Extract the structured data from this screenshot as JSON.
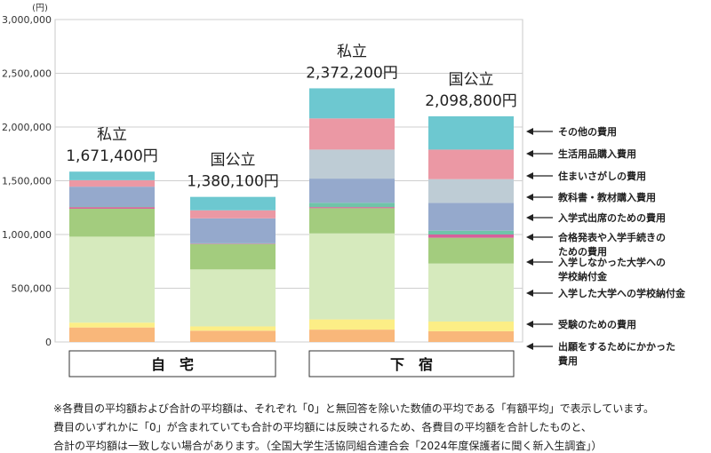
{
  "chart_data": {
    "type": "bar",
    "stacked": true,
    "unit_label": "(円)",
    "ylim": [
      0,
      3000000
    ],
    "y_ticks": [
      "0",
      "500,000",
      "1,000,000",
      "1,500,000",
      "2,000,000",
      "2,500,000",
      "3,000,000"
    ],
    "groups": [
      {
        "label": "自　宅",
        "bars": [
          0,
          1
        ]
      },
      {
        "label": "下　宿",
        "bars": [
          2,
          3
        ]
      }
    ],
    "bars": [
      {
        "type_label": "私立",
        "total_label": "1,671,400円",
        "values": [
          135000,
          45000,
          800000,
          260000,
          15000,
          5000,
          185000,
          0,
          60000,
          80000
        ]
      },
      {
        "type_label": "国公立",
        "total_label": "1,380,100円",
        "values": [
          105000,
          40000,
          530000,
          235000,
          5000,
          5000,
          230000,
          0,
          75000,
          125000
        ]
      },
      {
        "type_label": "私立",
        "total_label": "2,372,200円",
        "values": [
          115000,
          95000,
          800000,
          235000,
          10000,
          40000,
          225000,
          270000,
          290000,
          280000
        ]
      },
      {
        "type_label": "国公立",
        "total_label": "2,098,800円",
        "values": [
          100000,
          90000,
          540000,
          240000,
          30000,
          35000,
          260000,
          220000,
          275000,
          310000
        ]
      }
    ],
    "series": [
      {
        "name": "出願をするためにかかった費用",
        "color": "#F9B77A"
      },
      {
        "name": "受験のための費用",
        "color": "#FCEE86"
      },
      {
        "name": "入学した大学への学校納付金",
        "color": "#D6EABD"
      },
      {
        "name": "入学しなかった大学への学校納付金",
        "color": "#A3CC7E"
      },
      {
        "name": "合格発表や入学手続きのための費用",
        "color": "#D7609B"
      },
      {
        "name": "入学式出席のための費用",
        "color": "#6FC4A8"
      },
      {
        "name": "教科書・教材購入費用",
        "color": "#95A9CC"
      },
      {
        "name": "住まいさがしの費用",
        "color": "#BECCD5"
      },
      {
        "name": "生活用品購入費用",
        "color": "#EB98A4"
      },
      {
        "name": "その他の費用",
        "color": "#6DC8D0"
      }
    ],
    "annotations": [
      {
        "series": 9,
        "lines": [
          "その他の費用"
        ]
      },
      {
        "series": 8,
        "lines": [
          "生活用品購入費用"
        ]
      },
      {
        "series": 7,
        "lines": [
          "住まいさがしの費用"
        ]
      },
      {
        "series": 6,
        "lines": [
          "教科書・教材購入費用"
        ]
      },
      {
        "series": 5,
        "lines": [
          "入学式出席のための費用"
        ]
      },
      {
        "series": 4,
        "lines": [
          "合格発表や入学手続きの",
          "ための費用"
        ]
      },
      {
        "series": 3,
        "lines": [
          "入学しなかった大学への",
          "学校納付金"
        ]
      },
      {
        "series": 2,
        "lines": [
          "入学した大学への学校納付金"
        ]
      },
      {
        "series": 1,
        "lines": [
          "受験のための費用"
        ]
      },
      {
        "series": 0,
        "lines": [
          "出願をするためにかかった",
          "費用"
        ]
      }
    ],
    "grid": true
  },
  "notes": [
    "※各費目の平均額および合計の平均額は、それぞれ「0」と無回答を除いた数値の平均である「有額平均」で表示しています。",
    "費目のいずれかに「0」が含まれていても合計の平均額には反映されるため、各費目の平均額を合計したものと、",
    "合計の平均額は一致しない場合があります。（全国大学生活協同組合連合会「2024年度保護者に聞く新入生調査」）"
  ]
}
